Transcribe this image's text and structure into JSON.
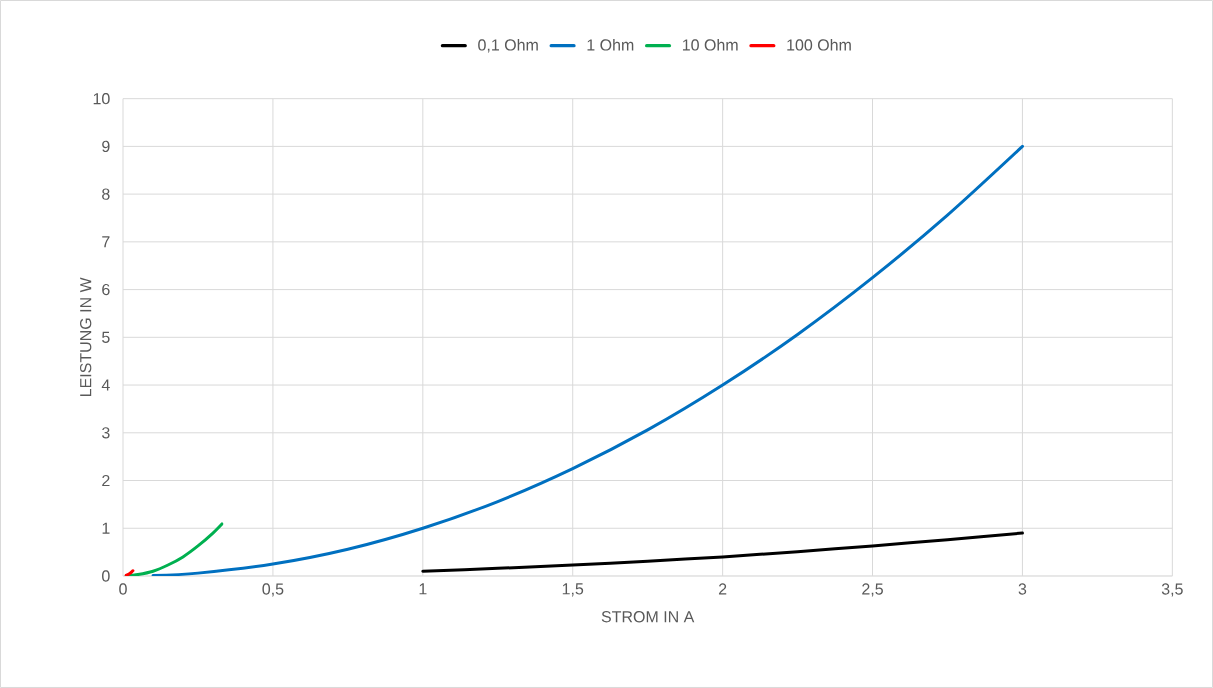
{
  "chart_data": {
    "type": "line",
    "xlabel": "STROM IN A",
    "ylabel": "LEISTUNG IN W",
    "xlim": [
      0,
      3.5
    ],
    "ylim": [
      0,
      10
    ],
    "xticks": [
      0,
      {
        "value": 0.5,
        "label": "0,5"
      },
      1,
      {
        "value": 1.5,
        "label": "1,5"
      },
      2,
      {
        "value": 2.5,
        "label": "2,5"
      },
      3,
      {
        "value": 3.5,
        "label": "3,5"
      }
    ],
    "yticks": [
      0,
      1,
      2,
      3,
      4,
      5,
      6,
      7,
      8,
      9,
      10
    ],
    "grid": true,
    "legend": "top",
    "marker": "none",
    "line_style": "solid",
    "series": [
      {
        "name": "0,1 Ohm",
        "color": "#000000",
        "x": [
          1,
          1.25,
          1.5,
          1.75,
          2,
          2.25,
          2.5,
          2.75,
          3
        ],
        "values": [
          0.1,
          0.16,
          0.23,
          0.31,
          0.4,
          0.51,
          0.63,
          0.76,
          0.9
        ]
      },
      {
        "name": "1 Ohm",
        "color": "#0070c0",
        "x": [
          0.1,
          0.25,
          0.5,
          0.75,
          1,
          1.25,
          1.5,
          1.75,
          2,
          2.25,
          2.5,
          2.75,
          3
        ],
        "values": [
          0.01,
          0.06,
          0.25,
          0.56,
          1,
          1.56,
          2.25,
          3.06,
          4,
          5.06,
          6.25,
          7.56,
          9
        ]
      },
      {
        "name": "10 Ohm",
        "color": "#00b050",
        "x": [
          0.01,
          0.05,
          0.1,
          0.15,
          0.2,
          0.25,
          0.3,
          0.33
        ],
        "values": [
          0,
          0.03,
          0.1,
          0.23,
          0.4,
          0.63,
          0.9,
          1.09
        ]
      },
      {
        "name": "100 Ohm",
        "color": "#ff0000",
        "x": [
          0.01,
          0.02,
          0.03,
          0.033
        ],
        "values": [
          0.01,
          0.04,
          0.09,
          0.11
        ]
      }
    ]
  }
}
